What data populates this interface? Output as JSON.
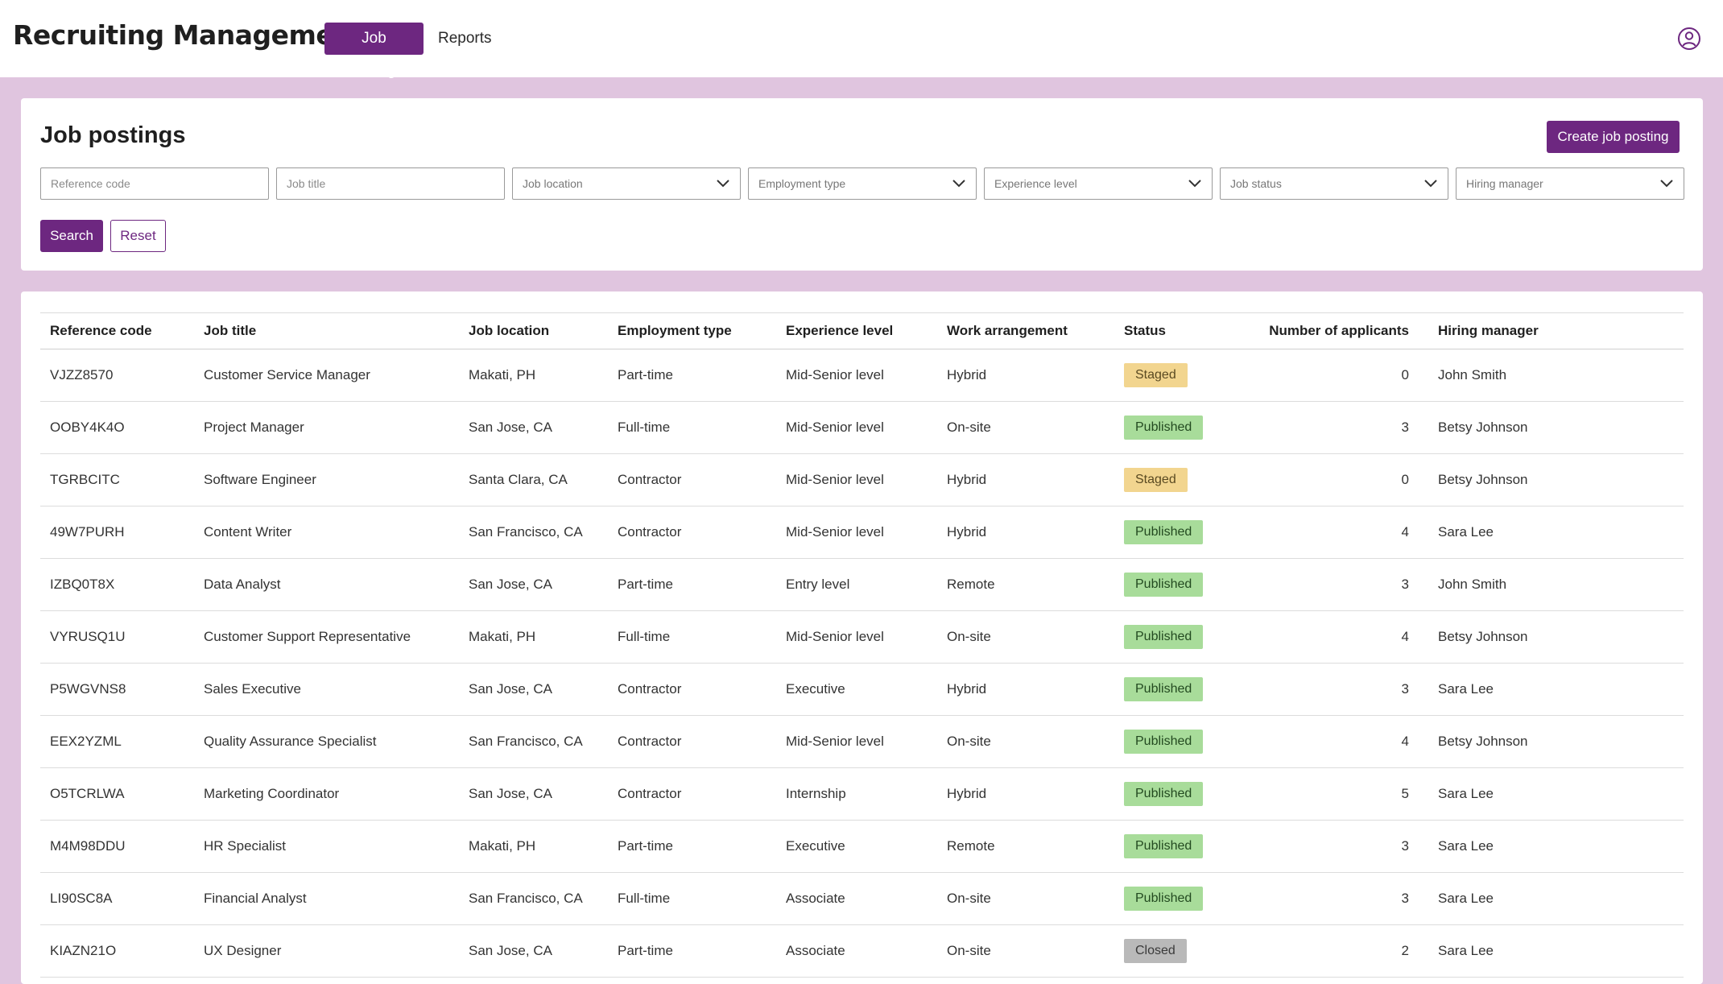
{
  "app": {
    "title": "Recruiting Management"
  },
  "nav": {
    "tabs": [
      {
        "label": "Job Postings",
        "active": true
      },
      {
        "label": "Reports",
        "active": false
      }
    ]
  },
  "user_icon": "user-circle-icon",
  "filters": {
    "title": "Job postings",
    "create_label": "Create job posting",
    "fields": [
      {
        "type": "text",
        "placeholder": "Reference code"
      },
      {
        "type": "text",
        "placeholder": "Job title"
      },
      {
        "type": "select",
        "label": "Job location"
      },
      {
        "type": "select",
        "label": "Employment type"
      },
      {
        "type": "select",
        "label": "Experience level"
      },
      {
        "type": "select",
        "label": "Job status"
      },
      {
        "type": "select",
        "label": "Hiring manager"
      }
    ],
    "search_label": "Search",
    "reset_label": "Reset"
  },
  "table": {
    "columns": [
      "Reference code",
      "Job title",
      "Job location",
      "Employment type",
      "Experience level",
      "Work arrangement",
      "Status",
      "Number of applicants",
      "Hiring manager"
    ],
    "rows": [
      [
        "VJZZ8570",
        "Customer Service Manager",
        "Makati, PH",
        "Part-time",
        "Mid-Senior level",
        "Hybrid",
        "Staged",
        "0",
        "John Smith"
      ],
      [
        "OOBY4K4O",
        "Project Manager",
        "San Jose, CA",
        "Full-time",
        "Mid-Senior level",
        "On-site",
        "Published",
        "3",
        "Betsy Johnson"
      ],
      [
        "TGRBCITC",
        "Software Engineer",
        "Santa Clara, CA",
        "Contractor",
        "Mid-Senior level",
        "Hybrid",
        "Staged",
        "0",
        "Betsy Johnson"
      ],
      [
        "49W7PURH",
        "Content Writer",
        "San Francisco, CA",
        "Contractor",
        "Mid-Senior level",
        "Hybrid",
        "Published",
        "4",
        "Sara Lee"
      ],
      [
        "IZBQ0T8X",
        "Data Analyst",
        "San Jose, CA",
        "Part-time",
        "Entry level",
        "Remote",
        "Published",
        "3",
        "John Smith"
      ],
      [
        "VYRUSQ1U",
        "Customer Support Representative",
        "Makati, PH",
        "Full-time",
        "Mid-Senior level",
        "On-site",
        "Published",
        "4",
        "Betsy Johnson"
      ],
      [
        "P5WGVNS8",
        "Sales Executive",
        "San Jose, CA",
        "Contractor",
        "Executive",
        "Hybrid",
        "Published",
        "3",
        "Sara Lee"
      ],
      [
        "EEX2YZML",
        "Quality Assurance Specialist",
        "San Francisco, CA",
        "Contractor",
        "Mid-Senior level",
        "On-site",
        "Published",
        "4",
        "Betsy Johnson"
      ],
      [
        "O5TCRLWA",
        "Marketing Coordinator",
        "San Jose, CA",
        "Contractor",
        "Internship",
        "Hybrid",
        "Published",
        "5",
        "Sara Lee"
      ],
      [
        "M4M98DDU",
        "HR Specialist",
        "Makati, PH",
        "Part-time",
        "Executive",
        "Remote",
        "Published",
        "3",
        "Sara Lee"
      ],
      [
        "LI90SC8A",
        "Financial Analyst",
        "San Francisco, CA",
        "Full-time",
        "Associate",
        "On-site",
        "Published",
        "3",
        "Sara Lee"
      ],
      [
        "KIAZN21O",
        "UX Designer",
        "San Jose, CA",
        "Part-time",
        "Associate",
        "On-site",
        "Closed",
        "2",
        "Sara Lee"
      ]
    ]
  },
  "colors": {
    "accent": "#6d2780",
    "background": "#e0c5df",
    "staged": "#f2d58f",
    "published": "#a8dc9a",
    "closed": "#b9b9b9"
  }
}
